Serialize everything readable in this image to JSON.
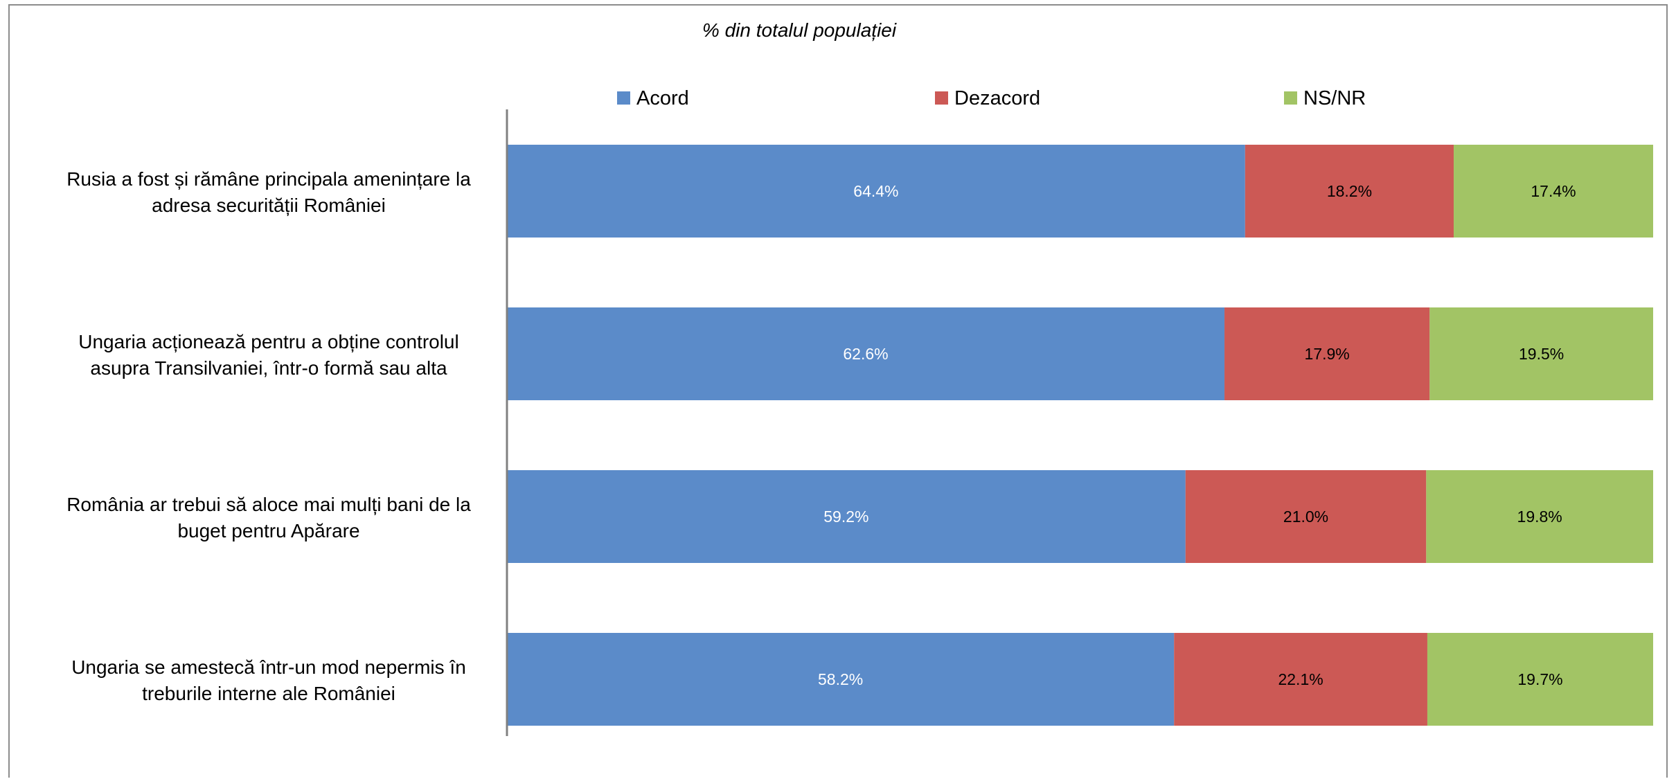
{
  "chart_data": {
    "type": "bar",
    "orientation": "horizontal",
    "stacked": true,
    "subtitle": "% din totalul populației",
    "categories": [
      [
        "Rusia a fost și rămâne principala amenințare la",
        "adresa securității României"
      ],
      [
        "Ungaria acționează pentru a obține controlul",
        "asupra Transilvaniei, într-o formă sau alta"
      ],
      [
        "România ar trebui să aloce mai mulți bani de la",
        "buget pentru Apărare"
      ],
      [
        "Ungaria se amestecă într-un mod nepermis în",
        "treburile interne ale României"
      ]
    ],
    "series": [
      {
        "name": "Acord",
        "color": "#5B8BC9",
        "label_color": "#ffffff",
        "values": [
          64.4,
          62.6,
          59.2,
          58.2
        ],
        "labels": [
          "64.4%",
          "62.6%",
          "59.2%",
          "58.2%"
        ]
      },
      {
        "name": "Dezacord",
        "color": "#CC5955",
        "label_color": "#000000",
        "values": [
          18.2,
          17.9,
          21.0,
          22.1
        ],
        "labels": [
          "18.2%",
          "17.9%",
          "21.0%",
          "22.1%"
        ]
      },
      {
        "name": "NS/NR",
        "color": "#A2C465",
        "label_color": "#000000",
        "values": [
          17.4,
          19.5,
          19.8,
          19.7
        ],
        "labels": [
          "17.4%",
          "19.5%",
          "19.8%",
          "19.7%"
        ]
      }
    ],
    "xlim": [
      0,
      100
    ],
    "legend_position": "top",
    "grid": false
  }
}
